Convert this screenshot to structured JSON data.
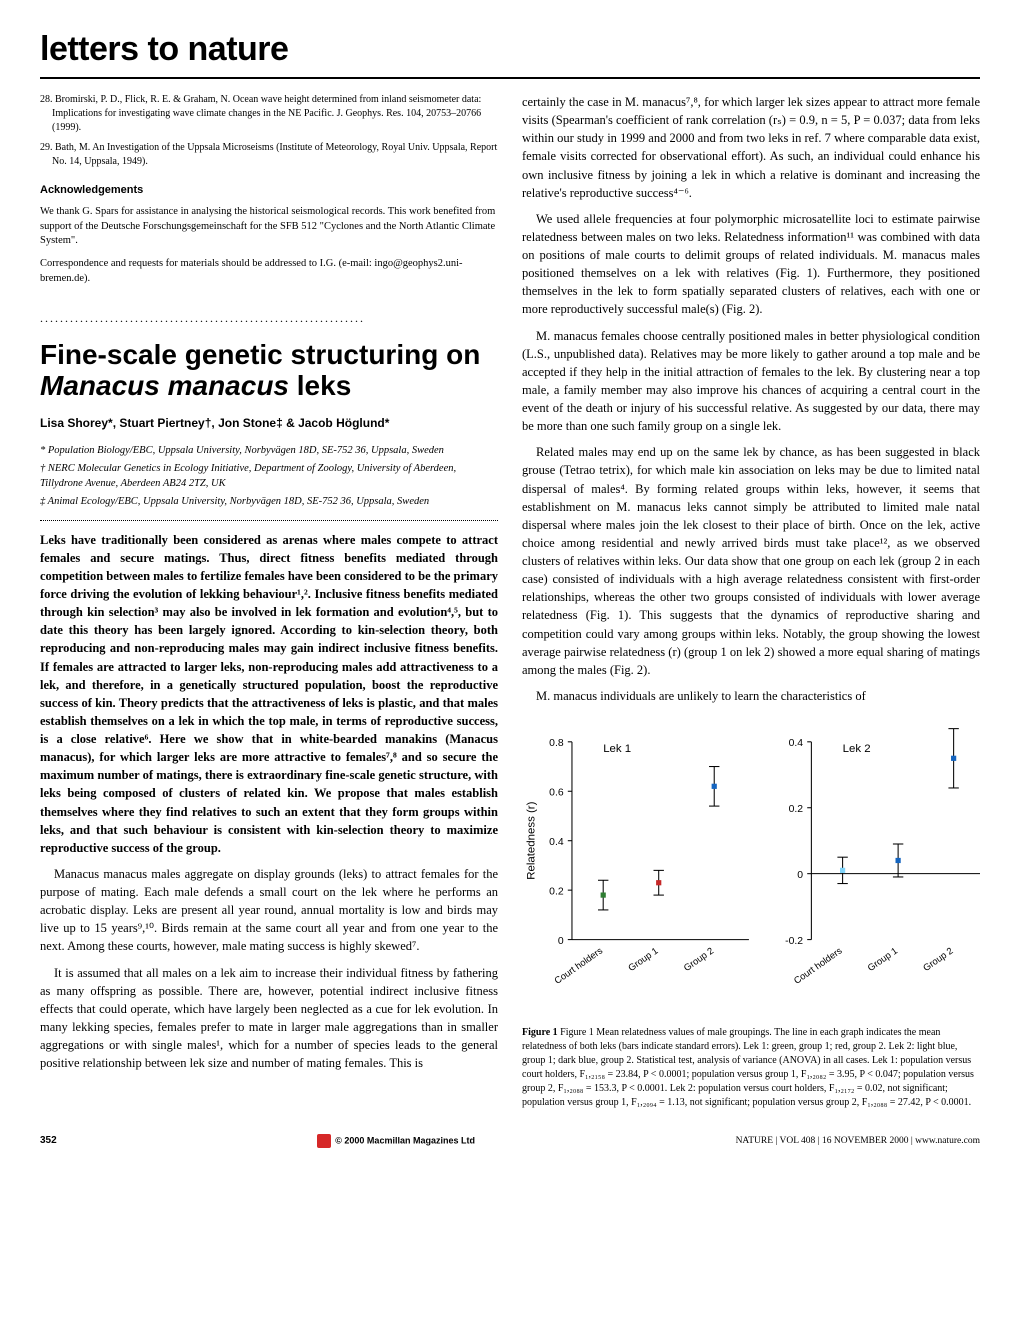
{
  "header": {
    "section_title": "letters to nature"
  },
  "left_col": {
    "refs": [
      {
        "num": "28.",
        "text": "Bromirski, P. D., Flick, R. E. & Graham, N. Ocean wave height determined from inland seismometer data: Implications for investigating wave climate changes in the NE Pacific. J. Geophys. Res. 104, 20753–20766 (1999)."
      },
      {
        "num": "29.",
        "text": "Bath, M. An Investigation of the Uppsala Microseisms (Institute of Meteorology, Royal Univ. Uppsala, Report No. 14, Uppsala, 1949)."
      }
    ],
    "ack_head": "Acknowledgements",
    "ack_text": "We thank G. Spars for assistance in analysing the historical seismological records. This work benefited from support of the Deutsche Forschungsgemeinschaft for the SFB 512 \"Cyclones and the North Atlantic Climate System\".",
    "corr_text": "Correspondence and requests for materials should be addressed to I.G. (e-mail: ingo@geophys2.uni-bremen.de).",
    "article_title": "Fine-scale genetic structuring on Manacus manacus leks",
    "authors": "Lisa Shorey*, Stuart Piertney†, Jon Stone‡ & Jacob Höglund*",
    "affils": [
      "* Population Biology/EBC, Uppsala University, Norbyvägen 18D, SE-752 36, Uppsala, Sweden",
      "† NERC Molecular Genetics in Ecology Initiative, Department of Zoology, University of Aberdeen, Tillydrone Avenue, Aberdeen AB24 2TZ, UK",
      "‡ Animal Ecology/EBC, Uppsala University, Norbyvägen 18D, SE-752 36, Uppsala, Sweden"
    ],
    "abstract": "Leks have traditionally been considered as arenas where males compete to attract females and secure matings. Thus, direct fitness benefits mediated through competition between males to fertilize females have been considered to be the primary force driving the evolution of lekking behaviour¹,². Inclusive fitness benefits mediated through kin selection³ may also be involved in lek formation and evolution⁴,⁵, but to date this theory has been largely ignored. According to kin-selection theory, both reproducing and non-reproducing males may gain indirect inclusive fitness benefits. If females are attracted to larger leks, non-reproducing males add attractiveness to a lek, and therefore, in a genetically structured population, boost the reproductive success of kin. Theory predicts that the attractiveness of leks is plastic, and that males establish themselves on a lek in which the top male, in terms of reproductive success, is a close relative⁶. Here we show that in white-bearded manakins (Manacus manacus), for which larger leks are more attractive to females⁷,⁸ and so secure the maximum number of matings, there is extraordinary fine-scale genetic structure, with leks being composed of clusters of related kin. We propose that males establish themselves where they find relatives to such an extent that they form groups within leks, and that such behaviour is consistent with kin-selection theory to maximize reproductive success of the group.",
    "p1": "Manacus manacus males aggregate on display grounds (leks) to attract females for the purpose of mating. Each male defends a small court on the lek where he performs an acrobatic display. Leks are present all year round, annual mortality is low and birds may live up to 15 years⁹,¹⁰. Birds remain at the same court all year and from one year to the next. Among these courts, however, male mating success is highly skewed⁷.",
    "p2": "It is assumed that all males on a lek aim to increase their individual fitness by fathering as many offspring as possible. There are, however, potential indirect inclusive fitness effects that could operate, which have largely been neglected as a cue for lek evolution. In many lekking species, females prefer to mate in larger male aggregations than in smaller aggregations or with single males¹, which for a number of species leads to the general positive relationship between lek size and number of mating females. This is"
  },
  "right_col": {
    "p1": "certainly the case in M. manacus⁷,⁸, for which larger lek sizes appear to attract more female visits (Spearman's coefficient of rank correlation (rₛ) = 0.9, n = 5, P = 0.037; data from leks within our study in 1999 and 2000 and from two leks in ref. 7 where comparable data exist, female visits corrected for observational effort). As such, an individual could enhance his own inclusive fitness by joining a lek in which a relative is dominant and increasing the relative's reproductive success⁴⁻⁶.",
    "p2": "We used allele frequencies at four polymorphic microsatellite loci to estimate pairwise relatedness between males on two leks. Relatedness information¹¹ was combined with data on positions of male courts to delimit groups of related individuals. M. manacus males positioned themselves on a lek with relatives (Fig. 1). Furthermore, they positioned themselves in the lek to form spatially separated clusters of relatives, each with one or more reproductively successful male(s) (Fig. 2).",
    "p3": "M. manacus females choose centrally positioned males in better physiological condition (L.S., unpublished data). Relatives may be more likely to gather around a top male and be accepted if they help in the initial attraction of females to the lek. By clustering near a top male, a family member may also improve his chances of acquiring a central court in the event of the death or injury of his successful relative. As suggested by our data, there may be more than one such family group on a single lek.",
    "p4": "Related males may end up on the same lek by chance, as has been suggested in black grouse (Tetrao tetrix), for which male kin association on leks may be due to limited natal dispersal of males⁴. By forming related groups within leks, however, it seems that establishment on M. manacus leks cannot simply be attributed to limited male natal dispersal where males join the lek closest to their place of birth. Once on the lek, active choice among residential and newly arrived birds must take place¹², as we observed clusters of relatives within leks. Our data show that one group on each lek (group 2 in each case) consisted of individuals with a high average relatedness consistent with first-order relationships, whereas the other two groups consisted of individuals with lower average relatedness (Fig. 1). This suggests that the dynamics of reproductive sharing and competition could vary among groups within leks. Notably, the group showing the lowest average pairwise relatedness (r) (group 1 on lek 2) showed a more equal sharing of matings among the males (Fig. 2).",
    "p5": "M. manacus individuals are unlikely to learn the characteristics of"
  },
  "figure1": {
    "type": "error-bar",
    "panels": [
      {
        "title": "Lek 1",
        "ylabel": "Relatedness (r)",
        "ylim": [
          0,
          0.8
        ],
        "yticks": [
          0,
          0.2,
          0.4,
          0.6,
          0.8
        ],
        "categories": [
          "Court holders",
          "Group 1",
          "Group 2"
        ],
        "means": [
          0.18,
          0.23,
          0.62
        ],
        "errors": [
          0.06,
          0.05,
          0.08
        ],
        "colors": [
          "#2e7d32",
          "#c62828",
          "#1565c0"
        ]
      },
      {
        "title": "Lek 2",
        "ylim": [
          -0.2,
          0.4
        ],
        "yticks": [
          -0.2,
          0,
          0.2,
          0.4
        ],
        "categories": [
          "Court holders",
          "Group 1",
          "Group 2"
        ],
        "means": [
          0.01,
          0.04,
          0.35
        ],
        "errors": [
          0.04,
          0.05,
          0.09
        ],
        "colors": [
          "#81d4fa",
          "#1565c0",
          "#1565c0"
        ]
      }
    ],
    "marker_size": 5,
    "error_cap": 5,
    "axis_color": "#000000",
    "font_size": 11,
    "caption": "Figure 1 Mean relatedness values of male groupings. The line in each graph indicates the mean relatedness of both leks (bars indicate standard errors). Lek 1: green, group 1; red, group 2. Lek 2: light blue, group 1; dark blue, group 2. Statistical test, analysis of variance (ANOVA) in all cases. Lek 1: population versus court holders, F₁,₂₁₅₈ = 23.84, P < 0.0001; population versus group 1, F₁,₂₀₈₂ = 3.95, P < 0.047; population versus group 2, F₁,₂₀₈₈ = 153.3, P < 0.0001. Lek 2: population versus court holders, F₁,₂₁₇₂ = 0.02, not significant; population versus group 1, F₁,₂₀₉₄ = 1.13, not significant; population versus group 2, F₁,₂₀₈₈ = 27.42, P < 0.0001."
  },
  "footer": {
    "page": "352",
    "center": "© 2000 Macmillan Magazines Ltd",
    "right": "NATURE | VOL 408 | 16 NOVEMBER 2000 | www.nature.com"
  }
}
